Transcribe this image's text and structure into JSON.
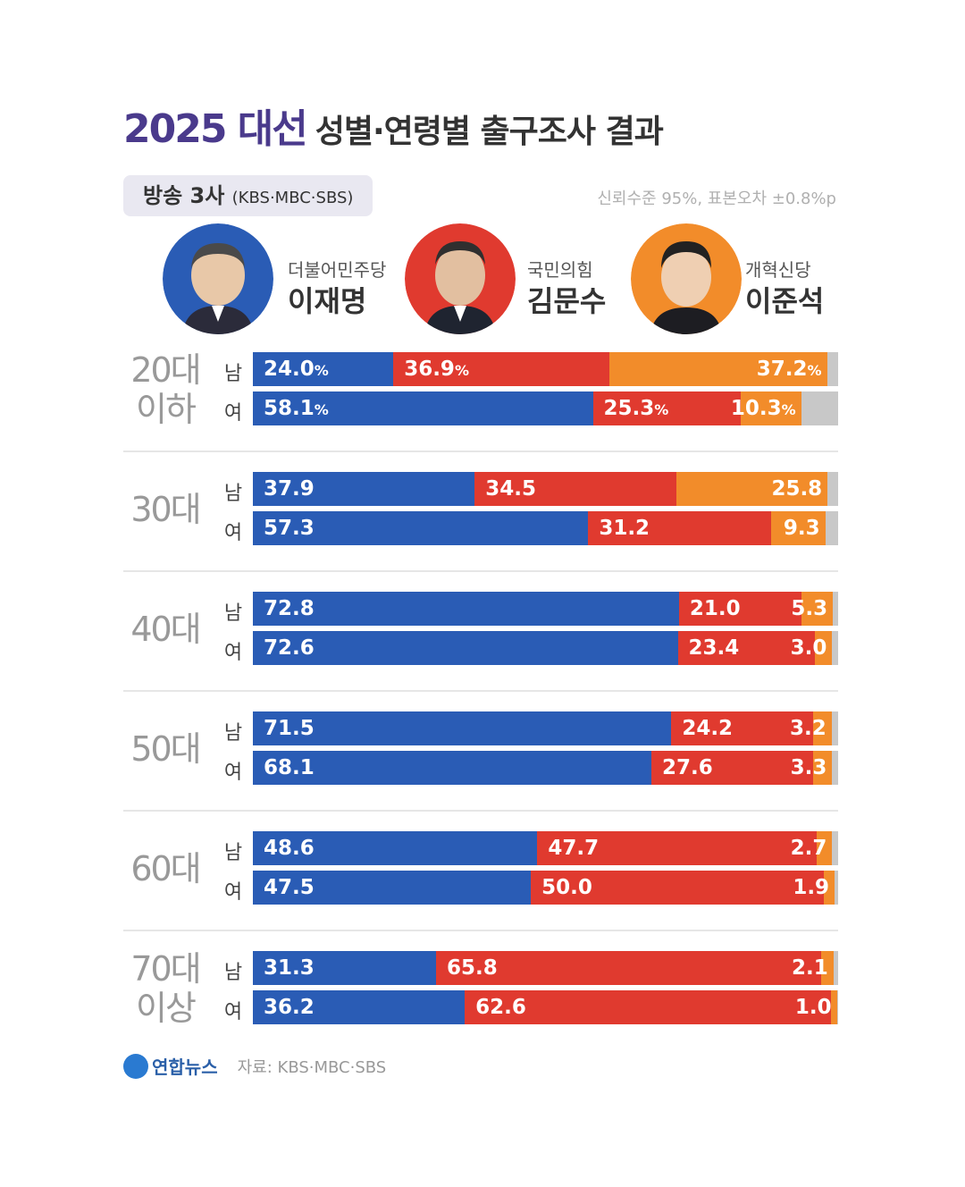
{
  "header": {
    "title_main": "2025 대선",
    "title_sub": "성별·연령별 출구조사 결과",
    "source_label": "방송 3사",
    "source_detail": "(KBS·MBC·SBS)",
    "confidence": "신뢰수준 95%, 표본오차 ±0.8%p"
  },
  "candidates": [
    {
      "party": "더불어민주당",
      "name": "이재명",
      "color": "#2a5cb5",
      "ring": "#2a5cb5"
    },
    {
      "party": "국민의힘",
      "name": "김문수",
      "color": "#e03a2f",
      "ring": "#e03a2f"
    },
    {
      "party": "개혁신당",
      "name": "이준석",
      "color": "#f28c2a",
      "ring": "#f28c2a"
    }
  ],
  "colors": {
    "lee": "#2a5cb5",
    "kim": "#e03a2f",
    "lee_js": "#f28c2a",
    "other": "#c8c8c8"
  },
  "chart_data": {
    "type": "bar",
    "stacked": true,
    "orientation": "horizontal",
    "groups": [
      {
        "age": "20대",
        "age2": "이하",
        "rows": [
          {
            "sex": "남",
            "values": [
              24.0,
              36.9,
              37.2
            ],
            "labels": [
              "24.0",
              "36.9",
              "37.2"
            ],
            "pct": true
          },
          {
            "sex": "여",
            "values": [
              58.1,
              25.3,
              10.3
            ],
            "labels": [
              "58.1",
              "25.3",
              "10.3"
            ],
            "pct": true
          }
        ]
      },
      {
        "age": "30대",
        "age2": "",
        "rows": [
          {
            "sex": "남",
            "values": [
              37.9,
              34.5,
              25.8
            ],
            "labels": [
              "37.9",
              "34.5",
              "25.8"
            ],
            "pct": false
          },
          {
            "sex": "여",
            "values": [
              57.3,
              31.2,
              9.3
            ],
            "labels": [
              "57.3",
              "31.2",
              "9.3"
            ],
            "pct": false
          }
        ]
      },
      {
        "age": "40대",
        "age2": "",
        "rows": [
          {
            "sex": "남",
            "values": [
              72.8,
              21.0,
              5.3
            ],
            "labels": [
              "72.8",
              "21.0",
              "5.3"
            ],
            "pct": false
          },
          {
            "sex": "여",
            "values": [
              72.6,
              23.4,
              3.0
            ],
            "labels": [
              "72.6",
              "23.4",
              "3.0"
            ],
            "pct": false
          }
        ]
      },
      {
        "age": "50대",
        "age2": "",
        "rows": [
          {
            "sex": "남",
            "values": [
              71.5,
              24.2,
              3.2
            ],
            "labels": [
              "71.5",
              "24.2",
              "3.2"
            ],
            "pct": false
          },
          {
            "sex": "여",
            "values": [
              68.1,
              27.6,
              3.3
            ],
            "labels": [
              "68.1",
              "27.6",
              "3.3"
            ],
            "pct": false
          }
        ]
      },
      {
        "age": "60대",
        "age2": "",
        "rows": [
          {
            "sex": "남",
            "values": [
              48.6,
              47.7,
              2.7
            ],
            "labels": [
              "48.6",
              "47.7",
              "2.7"
            ],
            "pct": false
          },
          {
            "sex": "여",
            "values": [
              47.5,
              50.0,
              1.9
            ],
            "labels": [
              "47.5",
              "50.0",
              "1.9"
            ],
            "pct": false
          }
        ]
      },
      {
        "age": "70대",
        "age2": "이상",
        "rows": [
          {
            "sex": "남",
            "values": [
              31.3,
              65.8,
              2.1
            ],
            "labels": [
              "31.3",
              "65.8",
              "2.1"
            ],
            "pct": false
          },
          {
            "sex": "여",
            "values": [
              36.2,
              62.6,
              1.0
            ],
            "labels": [
              "36.2",
              "62.6",
              "1.0"
            ],
            "pct": false
          }
        ]
      }
    ],
    "xlim": [
      0,
      100
    ]
  },
  "footer": {
    "logo": "연합뉴스",
    "source": "자료: KBS·MBC·SBS"
  }
}
